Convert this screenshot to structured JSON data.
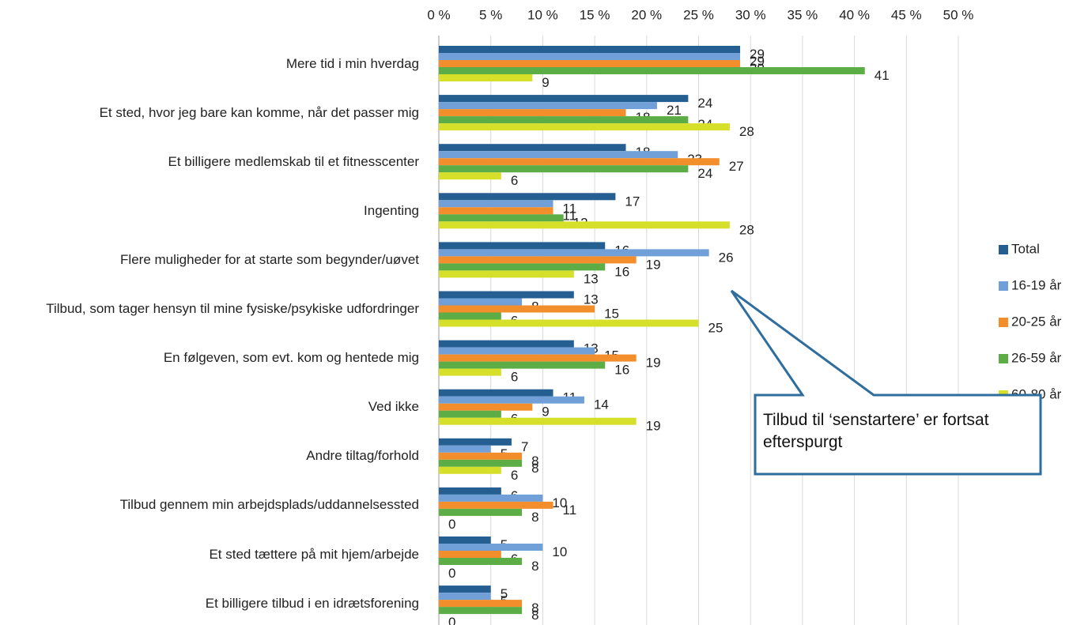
{
  "chart_data": {
    "type": "hbar",
    "categories": [
      "Mere tid i min hverdag",
      "Et sted, hvor jeg bare kan komme, når det passer mig",
      "Et billigere medlemskab til et fitnesscenter",
      "Ingenting",
      "Flere muligheder for at starte som begynder/uøvet",
      "Tilbud, som tager hensyn til mine fysiske/psykiske udfordringer",
      "En følgeven, som evt. kom og hentede mig",
      "Ved ikke",
      "Andre tiltag/forhold",
      "Tilbud gennem min arbejdsplads/uddannelsessted",
      "Et sted tættere på mit hjem/arbejde",
      "Et billigere tilbud i en idrætsforening"
    ],
    "series": [
      {
        "name": "Total",
        "color": "#255e91",
        "values": [
          29,
          24,
          18,
          17,
          16,
          13,
          13,
          11,
          7,
          6,
          5,
          5
        ]
      },
      {
        "name": "16-19 år",
        "color": "#70a0d7",
        "values": [
          29,
          21,
          23,
          11,
          26,
          8,
          15,
          14,
          5,
          10,
          10,
          5
        ]
      },
      {
        "name": "20-25 år",
        "color": "#f28e2b",
        "values": [
          29,
          18,
          27,
          11,
          19,
          15,
          19,
          9,
          8,
          11,
          6,
          8
        ]
      },
      {
        "name": "26-59 år",
        "color": "#5cad45",
        "values": [
          41,
          24,
          24,
          12,
          16,
          6,
          16,
          6,
          8,
          8,
          8,
          8
        ]
      },
      {
        "name": "60-80 år",
        "color": "#d6df2a",
        "values": [
          9,
          28,
          6,
          28,
          13,
          25,
          6,
          19,
          6,
          0,
          0,
          0
        ]
      }
    ],
    "xlim": [
      0,
      50
    ],
    "xticks": [
      {
        "value": 0,
        "label": "0 %"
      },
      {
        "value": 5,
        "label": "5 %"
      },
      {
        "value": 10,
        "label": "10 %"
      },
      {
        "value": 15,
        "label": "15 %"
      },
      {
        "value": 20,
        "label": "20 %"
      },
      {
        "value": 25,
        "label": "25 %"
      },
      {
        "value": 30,
        "label": "30 %"
      },
      {
        "value": 35,
        "label": "35 %"
      },
      {
        "value": 40,
        "label": "40 %"
      },
      {
        "value": 45,
        "label": "45 %"
      },
      {
        "value": 50,
        "label": "50 %"
      }
    ],
    "grid": true,
    "legend": "right",
    "annotation": "Tilbud til ‘senstartere’ er fortsat efterspurgt"
  }
}
